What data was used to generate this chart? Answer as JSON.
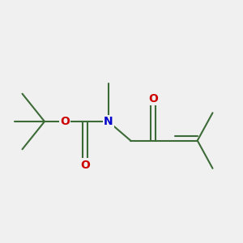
{
  "bg_color": "#f0f0f0",
  "bond_color": "#3d6b38",
  "bond_width": 1.5,
  "atom_O_color": "#cc0000",
  "atom_N_color": "#0000cc",
  "font_size": 10,
  "figsize": [
    3.0,
    3.0
  ],
  "dpi": 100,
  "xlim": [
    0,
    12
  ],
  "ylim": [
    2,
    9
  ]
}
